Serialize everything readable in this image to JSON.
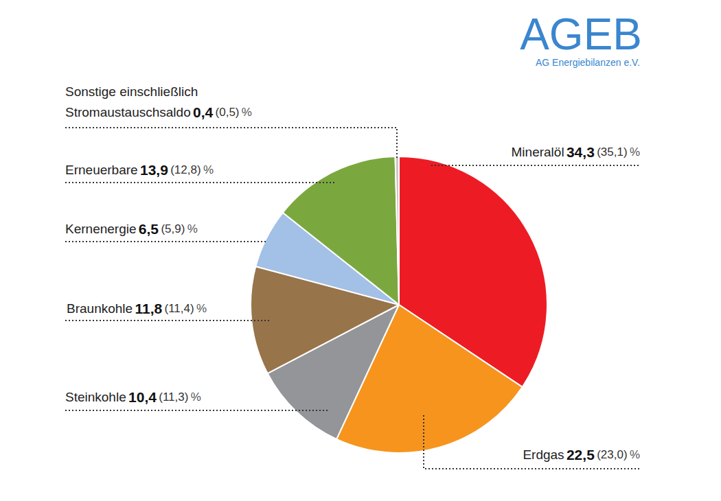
{
  "chart_data": {
    "type": "pie",
    "logo": "AGEB",
    "logo_subtitle": "AG Energiebilanzen e.V.",
    "unit": "%",
    "categories": [
      "Mineralöl",
      "Erdgas",
      "Steinkohle",
      "Braunkohle",
      "Kernenergie",
      "Erneuerbare",
      "Sonstige einschließlich Stromaustauschsaldo"
    ],
    "values": [
      34.3,
      22.5,
      10.4,
      11.8,
      6.5,
      13.9,
      0.4
    ],
    "value_labels": [
      "34,3",
      "22,5",
      "10,4",
      "11,8",
      "6,5",
      "13,9",
      "0,4"
    ],
    "previous_values": [
      35.1,
      23.0,
      11.3,
      11.4,
      5.9,
      12.8,
      0.5
    ],
    "previous_value_labels": [
      "(35,1)",
      "(23,0)",
      "(11,3)",
      "(11,4)",
      "(5,9)",
      "(12,8)",
      "(0,5)"
    ],
    "colors": [
      "#ed1c24",
      "#f7941d",
      "#939598",
      "#98744a",
      "#a3c0e6",
      "#7aa83f",
      "#c8c8c8"
    ],
    "data_labels": true
  }
}
